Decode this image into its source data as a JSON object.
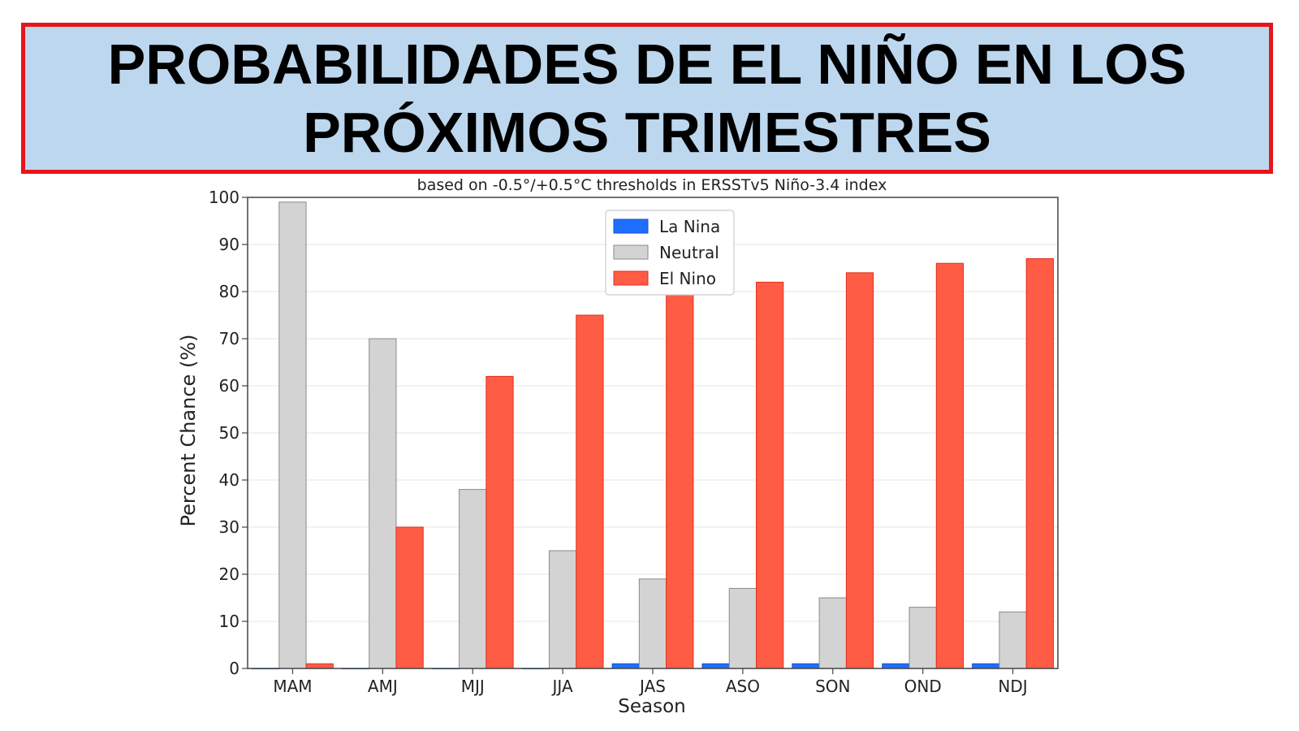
{
  "banner": {
    "title_line1": "PROBABILIDADES DE EL NIÑO EN LOS",
    "title_line2": "PRÓXIMOS TRIMESTRES",
    "border_color": "#e8141c",
    "background_color": "#bdd7ee"
  },
  "chart_data": {
    "type": "bar",
    "title": "based on -0.5°/+0.5°C thresholds in ERSSTv5 Niño-3.4 index",
    "xlabel": "Season",
    "ylabel": "Percent Chance (%)",
    "ylim": [
      0,
      100
    ],
    "yticks": [
      0,
      10,
      20,
      30,
      40,
      50,
      60,
      70,
      80,
      90,
      100
    ],
    "grid": true,
    "legend_position": "top-center",
    "categories": [
      "MAM",
      "AMJ",
      "MJJ",
      "JJA",
      "JAS",
      "ASO",
      "SON",
      "OND",
      "NDJ"
    ],
    "series": [
      {
        "name": "La Nina",
        "color": "#1f6fff",
        "values": [
          0,
          0,
          0,
          0,
          1,
          1,
          1,
          1,
          1
        ]
      },
      {
        "name": "Neutral",
        "color": "#d3d3d3",
        "values": [
          99,
          70,
          38,
          25,
          19,
          17,
          15,
          13,
          12
        ]
      },
      {
        "name": "El Nino",
        "color": "#ff5c45",
        "values": [
          1,
          30,
          62,
          75,
          80,
          82,
          84,
          86,
          87
        ]
      }
    ]
  }
}
